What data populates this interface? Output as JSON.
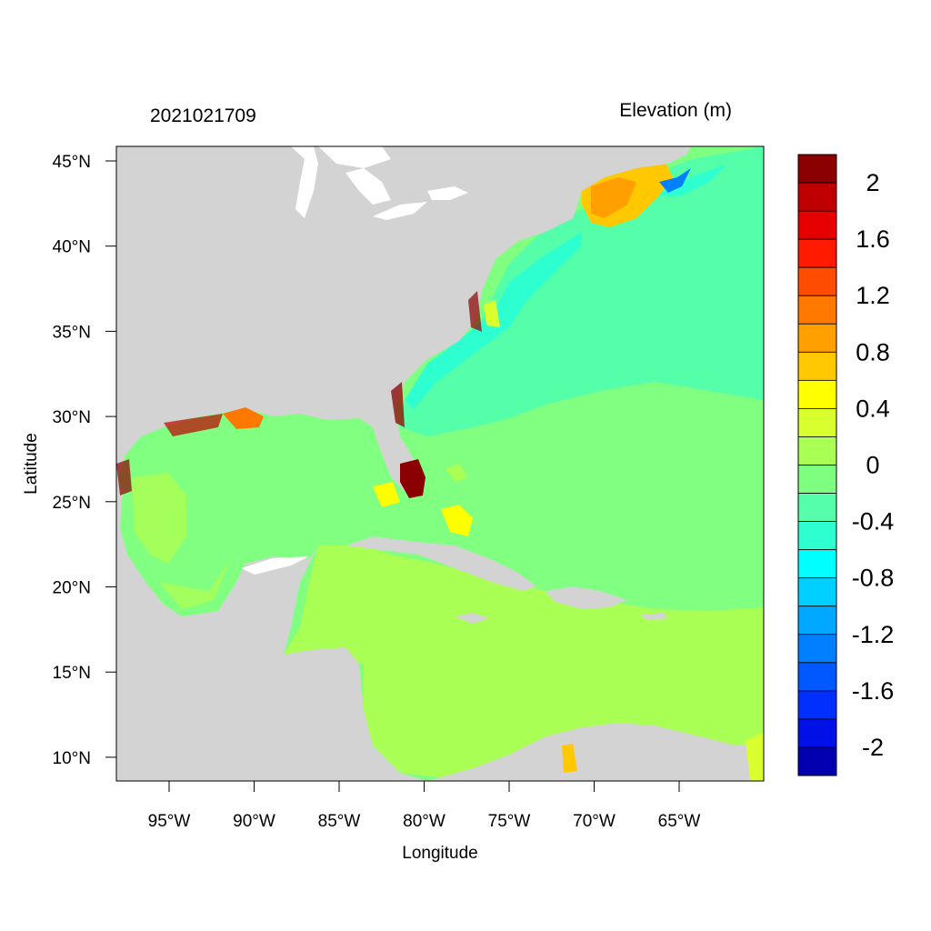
{
  "header": {
    "timestamp": "2021021709",
    "variable_title": "Elevation (m)"
  },
  "axes": {
    "xlabel": "Longitude",
    "ylabel": "Latitude",
    "x_ticks": [
      "95°W",
      "90°W",
      "85°W",
      "80°W",
      "75°W",
      "70°W",
      "65°W"
    ],
    "y_ticks": [
      "45°N",
      "40°N",
      "35°N",
      "30°N",
      "25°N",
      "20°N",
      "15°N",
      "10°N"
    ]
  },
  "colorbar": {
    "labels": [
      "2",
      "1.6",
      "1.2",
      "0.8",
      "0.4",
      "0",
      "-0.4",
      "-0.8",
      "-1.2",
      "-1.6",
      "-2"
    ],
    "colors_top_to_bottom": [
      "#8b0000",
      "#bf0000",
      "#e60000",
      "#ff1a00",
      "#ff4d00",
      "#ff7800",
      "#ff9f00",
      "#ffc800",
      "#ffff00",
      "#d9ff2e",
      "#aaff55",
      "#7fff80",
      "#55ffaa",
      "#2effd0",
      "#00ffff",
      "#00d0ff",
      "#00a8ff",
      "#0080ff",
      "#0058ff",
      "#0030ff",
      "#0010e6",
      "#0000b0"
    ]
  },
  "colors": {
    "land": "#d3d3d3",
    "ocean_default": "#80ff80",
    "caribbean": "#aaff55"
  }
}
